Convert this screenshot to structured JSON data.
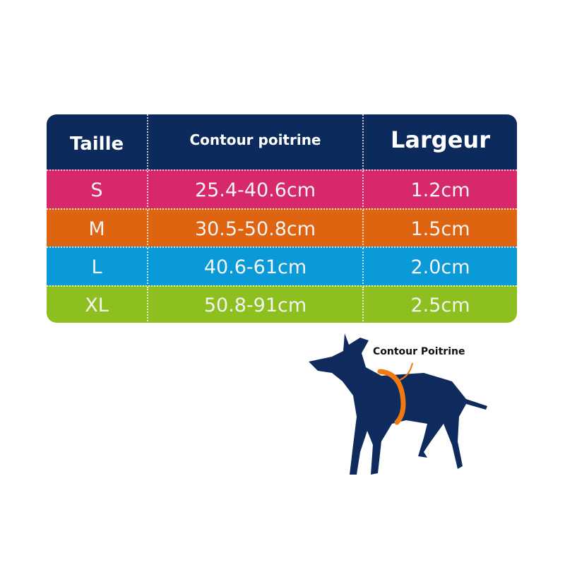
{
  "table": {
    "headers": [
      "Taille",
      "Contour poitrine",
      "Largeur"
    ],
    "rows": [
      {
        "size": "S",
        "chest": "25.4-40.6cm",
        "width": "1.2cm",
        "color": "#d6286b"
      },
      {
        "size": "M",
        "chest": "30.5-50.8cm",
        "width": "1.5cm",
        "color": "#df6410"
      },
      {
        "size": "L",
        "chest": "40.6-61cm",
        "width": "2.0cm",
        "color": "#0b9ad8"
      },
      {
        "size": "XL",
        "chest": "50.8-91cm",
        "width": "2.5cm",
        "color": "#8dbf1f"
      }
    ],
    "header_color": "#0d2a5c"
  },
  "illustration": {
    "label": "Contour Poitrine",
    "dog_color": "#0f2b5e",
    "band_color": "#f07a10"
  }
}
